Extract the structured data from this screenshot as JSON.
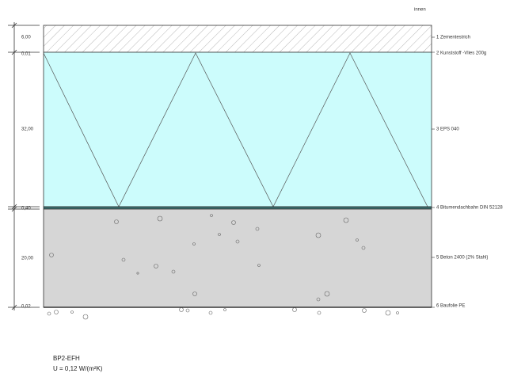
{
  "header": {
    "side_label": "innen"
  },
  "layers": [
    {
      "thickness": "6,00",
      "label": "1 Zementestrich"
    },
    {
      "thickness": "0,01",
      "label": "2 Kunststoff -Vlies 200g"
    },
    {
      "thickness": "32,00",
      "label": "3 EPS 040"
    },
    {
      "thickness": "0,40",
      "label": "4 Bitumendachbahn DIN 52128"
    },
    {
      "thickness": "20,00",
      "label": "5 Beton 2400 (2% Stahl)"
    },
    {
      "thickness": "0,02",
      "label": "6 Baufolie PE"
    }
  ],
  "footer": {
    "name": "BP2-EFH",
    "u_value": "U = 0,12 W/(m²K)"
  }
}
